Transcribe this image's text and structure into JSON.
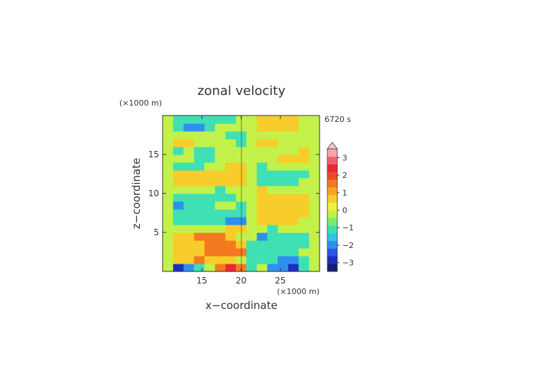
{
  "chart_data": {
    "type": "heatmap",
    "title": "zonal velocity",
    "time_label": "6720 s",
    "xlabel": "x−coordinate",
    "ylabel": "z−coordinate",
    "x_unit": "(×1000 m)",
    "y_unit": "(×1000 m)",
    "xlim": [
      10,
      30
    ],
    "ylim": [
      0,
      20
    ],
    "x_ticks": [
      {
        "value": 15,
        "label": "15"
      },
      {
        "value": 20,
        "label": "20"
      },
      {
        "value": 25,
        "label": "25"
      }
    ],
    "y_ticks": [
      {
        "value": 5,
        "label": "5"
      },
      {
        "value": 10,
        "label": "10"
      },
      {
        "value": 15,
        "label": "15"
      }
    ],
    "colorbar": {
      "min": -3.5,
      "max": 3.5,
      "step": 0.5,
      "extend_max": true,
      "tick_labels": [
        {
          "value": 3,
          "label": "3"
        },
        {
          "value": 2,
          "label": "2"
        },
        {
          "value": 1,
          "label": "1"
        },
        {
          "value": 0,
          "label": "0"
        },
        {
          "value": -1,
          "label": "−1"
        },
        {
          "value": -2,
          "label": "−2"
        },
        {
          "value": -3,
          "label": "−3"
        }
      ],
      "colors": [
        "#152070",
        "#1d2fc0",
        "#2a55e6",
        "#2f8ff0",
        "#33c4e2",
        "#3fe0b4",
        "#78ec6e",
        "#c2f24a",
        "#eef23a",
        "#f8cc2a",
        "#f8a520",
        "#f47a22",
        "#ee4a2a",
        "#e82a36",
        "#f06070",
        "#f5a6ac"
      ],
      "arrow_color": "#f8c8cc"
    },
    "grid": [
      [
        0,
        -3,
        -2,
        -1,
        0,
        2,
        3,
        2,
        -1,
        0,
        -2,
        -2,
        -3,
        -1,
        0
      ],
      [
        0,
        1,
        1,
        2,
        1,
        1,
        1,
        0,
        -1,
        -1,
        -1,
        -2,
        -2,
        -1,
        0
      ],
      [
        0,
        1,
        1,
        1,
        2,
        2,
        2,
        2,
        -1,
        -1,
        -1,
        -1,
        -1,
        0,
        0
      ],
      [
        0,
        1,
        1,
        1,
        2,
        2,
        2,
        1,
        -1,
        -1,
        -1,
        -1,
        -1,
        -1,
        0
      ],
      [
        0,
        1,
        1,
        2,
        2,
        2,
        1,
        0,
        0,
        -2,
        -1,
        -1,
        -1,
        -1,
        0
      ],
      [
        0,
        0,
        0,
        0,
        0,
        0,
        1,
        1,
        0,
        0,
        -1,
        0,
        0,
        0,
        0
      ],
      [
        0,
        -1,
        -1,
        -1,
        -1,
        -1,
        -2,
        -2,
        0,
        1,
        1,
        1,
        1,
        0,
        0
      ],
      [
        0,
        -1,
        -1,
        -1,
        -1,
        -1,
        -1,
        -1,
        0,
        1,
        1,
        1,
        1,
        1,
        0
      ],
      [
        0,
        -2,
        -1,
        -1,
        -1,
        0,
        0,
        -1,
        0,
        1,
        1,
        1,
        1,
        1,
        0
      ],
      [
        0,
        -1,
        -1,
        -1,
        -1,
        -1,
        -1,
        0,
        0,
        1,
        1,
        1,
        1,
        1,
        0
      ],
      [
        0,
        0,
        0,
        0,
        0,
        -1,
        0,
        0,
        0,
        1,
        0,
        0,
        0,
        0,
        0
      ],
      [
        0,
        1,
        1,
        1,
        1,
        1,
        1,
        1,
        0,
        -1,
        -1,
        -1,
        -1,
        0,
        0
      ],
      [
        0,
        1,
        1,
        1,
        1,
        1,
        1,
        1,
        0,
        -1,
        -1,
        -1,
        -1,
        -1,
        0
      ],
      [
        0,
        -1,
        -1,
        -1,
        0,
        0,
        1,
        1,
        0,
        -1,
        0,
        0,
        0,
        0,
        0
      ],
      [
        0,
        0,
        0,
        -1,
        -1,
        0,
        0,
        0,
        0,
        0,
        0,
        1,
        1,
        1,
        0
      ],
      [
        0,
        -1,
        0,
        -1,
        -1,
        0,
        0,
        0,
        0,
        0,
        0,
        0,
        0,
        1,
        0
      ],
      [
        0,
        1,
        1,
        0,
        0,
        0,
        0,
        -1,
        0,
        1,
        1,
        0,
        0,
        0,
        0
      ],
      [
        0,
        0,
        0,
        0,
        0,
        0,
        -1,
        -1,
        0,
        0,
        0,
        0,
        0,
        0,
        0
      ],
      [
        0,
        -1,
        -2,
        -2,
        -1,
        0,
        0,
        0,
        0,
        1,
        1,
        1,
        1,
        0,
        0
      ],
      [
        0,
        -1,
        -1,
        -1,
        -1,
        -1,
        -1,
        0,
        0,
        1,
        1,
        1,
        1,
        0,
        0
      ]
    ]
  }
}
